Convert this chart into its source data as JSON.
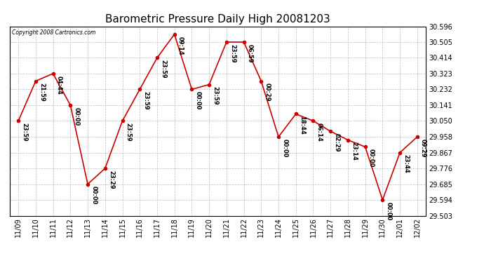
{
  "title": "Barometric Pressure Daily High 20081203",
  "copyright": "Copyright 2008 Cartronics.com",
  "x_labels": [
    "11/09",
    "11/10",
    "11/11",
    "11/12",
    "11/13",
    "11/14",
    "11/15",
    "11/16",
    "11/17",
    "11/18",
    "11/19",
    "11/20",
    "11/21",
    "11/22",
    "11/23",
    "11/24",
    "11/25",
    "11/26",
    "11/27",
    "11/28",
    "11/29",
    "11/30",
    "12/01",
    "12/02"
  ],
  "y_values": [
    30.05,
    30.28,
    30.323,
    30.141,
    29.685,
    29.776,
    30.05,
    30.232,
    30.414,
    30.55,
    30.232,
    30.26,
    30.505,
    30.505,
    30.28,
    29.958,
    30.09,
    30.05,
    29.99,
    29.94,
    29.9,
    29.594,
    29.867,
    29.958
  ],
  "point_labels": [
    "23:59",
    "21:59",
    "04:44",
    "00:00",
    "00:00",
    "23:29",
    "23:59",
    "23:59",
    "23:59",
    "09:14",
    "00:00",
    "23:59",
    "23:59",
    "06:59",
    "00:29",
    "00:00",
    "18:44",
    "06:14",
    "02:29",
    "23:14",
    "00:00",
    "00:00",
    "23:44",
    "09:29"
  ],
  "ylim_min": 29.503,
  "ylim_max": 30.596,
  "yticks": [
    29.503,
    29.594,
    29.685,
    29.776,
    29.867,
    29.958,
    30.05,
    30.141,
    30.232,
    30.323,
    30.414,
    30.505,
    30.596
  ],
  "line_color": "#cc0000",
  "marker_color": "#cc0000",
  "bg_color": "#ffffff",
  "grid_color": "#bbbbbb",
  "title_fontsize": 11,
  "tick_fontsize": 7,
  "point_label_fontsize": 6
}
